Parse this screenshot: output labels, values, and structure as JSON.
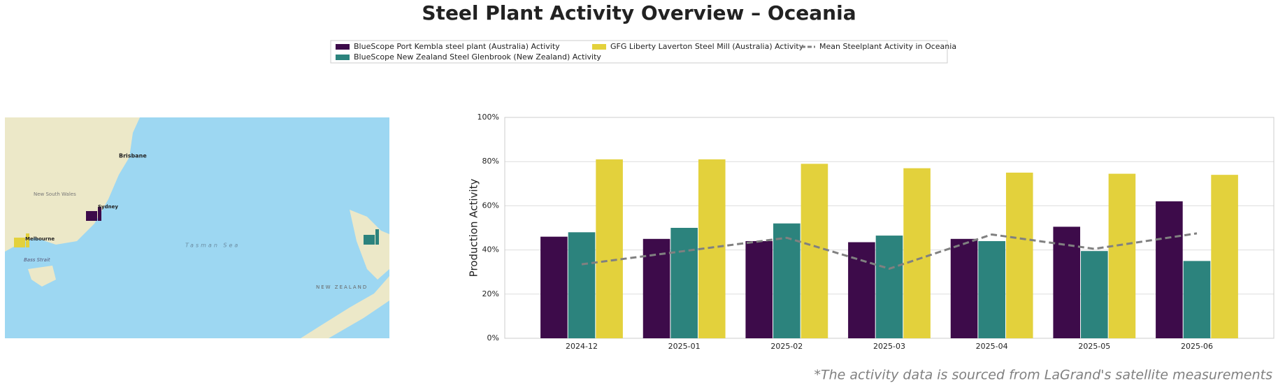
{
  "chart_data": {
    "type": "bar",
    "title": "Steel Plant Activity Overview – Oceania",
    "y_label": "Production Activity",
    "footer": "*The activity data is sourced from LaGrand's satellite measurements",
    "categories": [
      "2024-12",
      "2025-01",
      "2025-02",
      "2025-03",
      "2025-04",
      "2025-05",
      "2025-06"
    ],
    "series": [
      {
        "name": "BlueScope Port Kembla steel plant (Australia) Activity",
        "color": "#3d0b4a",
        "values": [
          46,
          45,
          44,
          43.5,
          45,
          50.5,
          62
        ]
      },
      {
        "name": "BlueScope New Zealand Steel Glenbrook (New Zealand) Activity",
        "color": "#2c837d",
        "values": [
          48,
          50,
          52,
          46.5,
          44,
          39.5,
          35
        ]
      },
      {
        "name": "GFG Liberty Laverton Steel Mill (Australia) Activity",
        "color": "#e3d13c",
        "values": [
          81,
          81,
          79,
          77,
          75,
          74.5,
          74
        ]
      },
      {
        "name": "Mean Steelplant Activity in Oceania",
        "color": "#808080",
        "type": "line",
        "dashed": true,
        "values": [
          33.5,
          39.5,
          45.5,
          31.5,
          47,
          40.5,
          47.5
        ]
      }
    ],
    "ylim": [
      0,
      100
    ],
    "yticks": [
      {
        "value": 0,
        "label": "0%"
      },
      {
        "value": 20,
        "label": "20%"
      },
      {
        "value": 40,
        "label": "40%"
      },
      {
        "value": 60,
        "label": "60%"
      },
      {
        "value": 80,
        "label": "80%"
      },
      {
        "value": 100,
        "label": "100%"
      }
    ],
    "grid": true,
    "legend": "top"
  },
  "map": {
    "labels": [
      "Brisbane",
      "Sydney",
      "Melbourne",
      "Bass Strait",
      "New South Wales",
      "Tasman Sea",
      "NEW ZEALAND"
    ]
  }
}
